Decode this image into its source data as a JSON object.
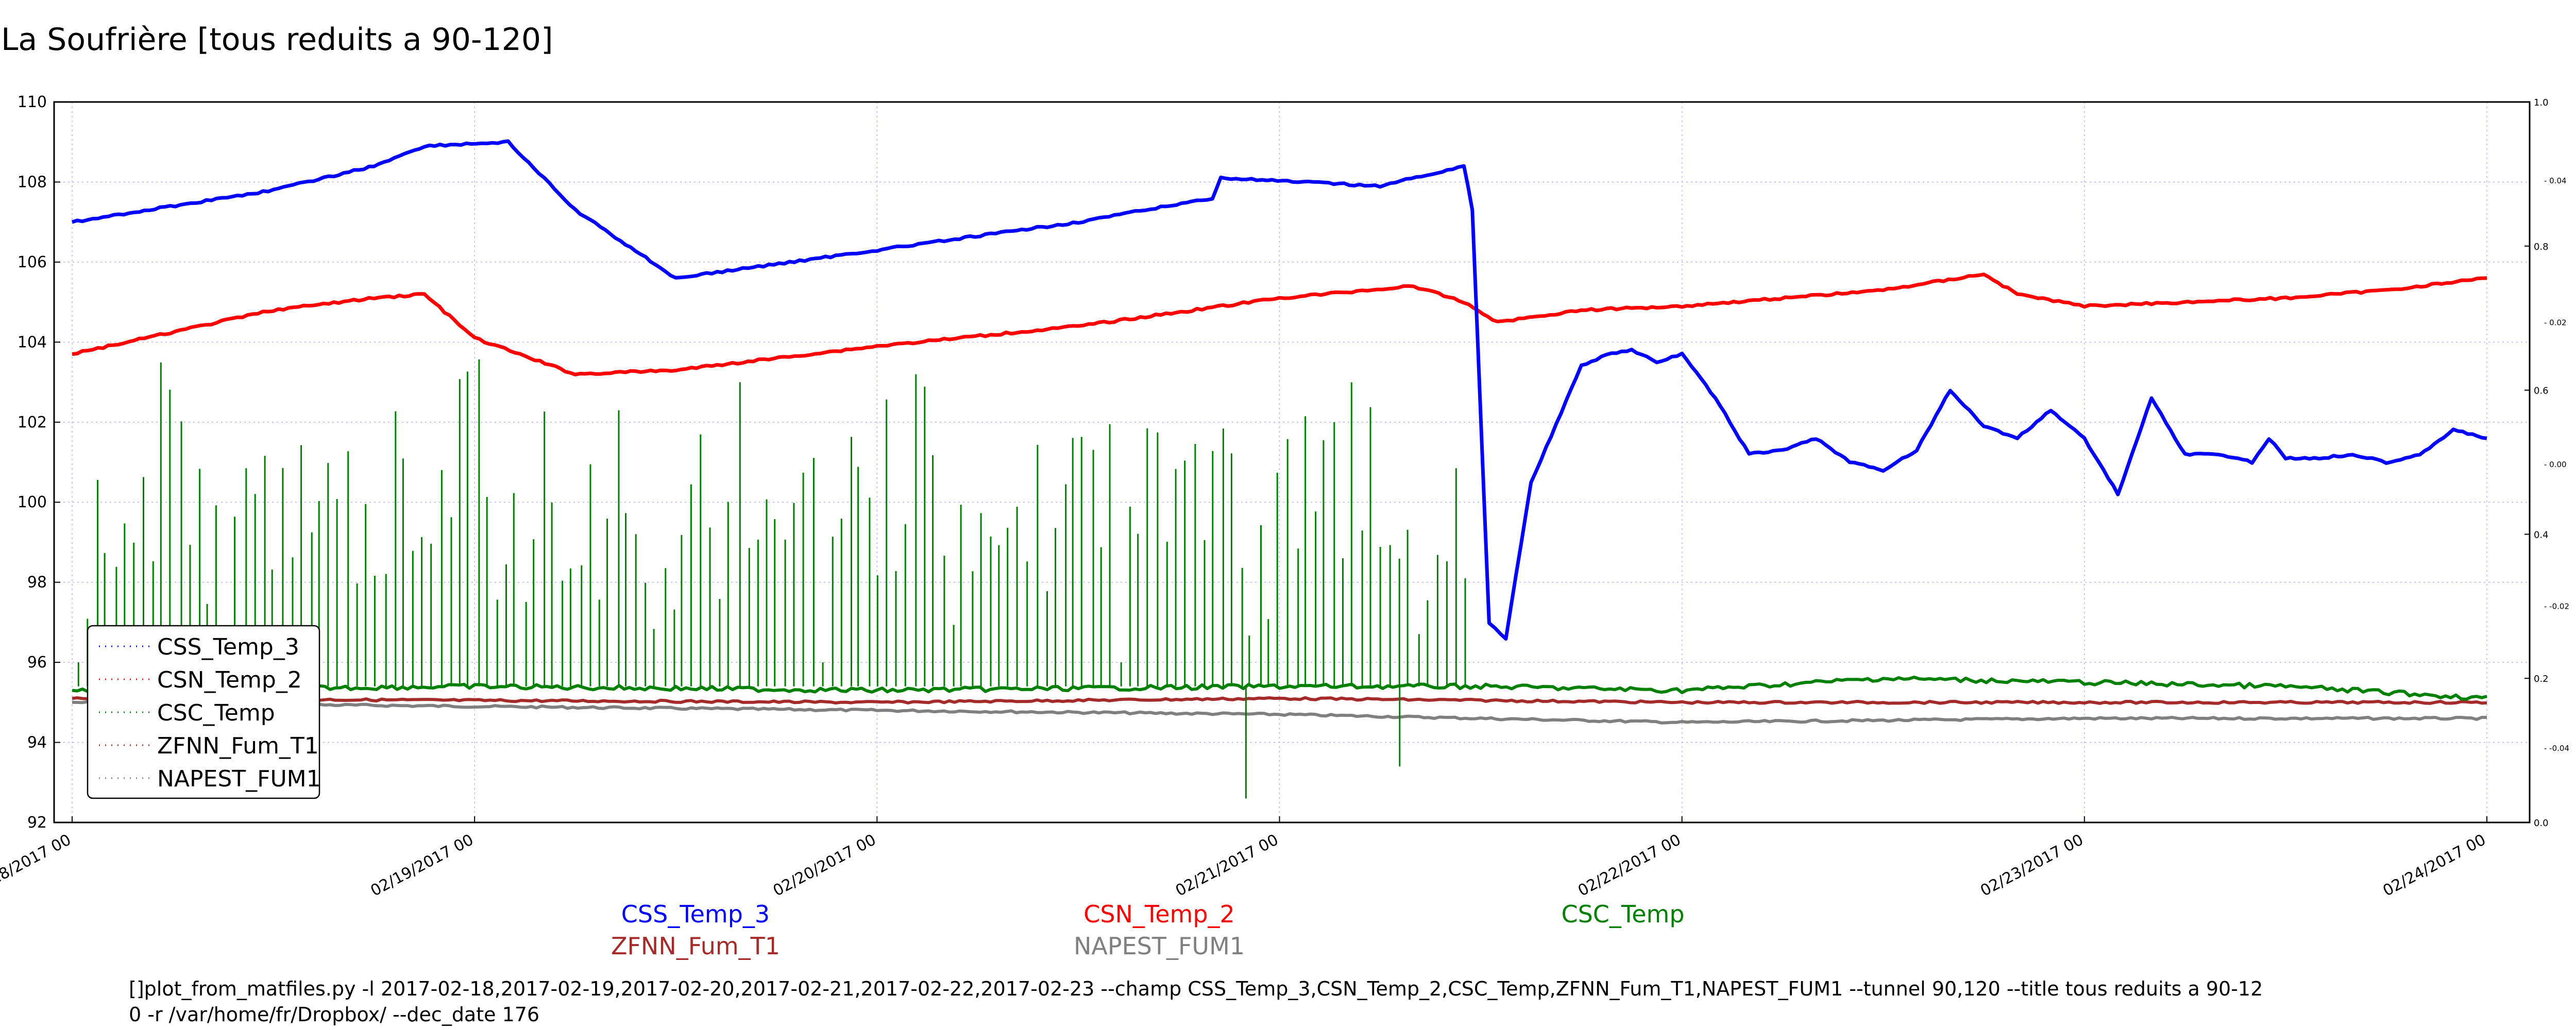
{
  "title": "La Soufrière [tous reduits a 90-120]",
  "command_lines": [
    "[]plot_from_matfiles.py -l 2017-02-18,2017-02-19,2017-02-20,2017-02-21,2017-02-22,2017-02-23 --champ CSS_Temp_3,CSN_Temp_2,CSC_Temp,ZFNN_Fum_T1,NAPEST_FUM1 --tunnel 90,120 --title tous reduits a 90-12",
    "0 -r /var/home/fr/Dropbox/ --dec_date 176"
  ],
  "series_labels": [
    {
      "text": "CSS_Temp_3",
      "color": "#0000ff"
    },
    {
      "text": "CSN_Temp_2",
      "color": "#ff0000"
    },
    {
      "text": "CSC_Temp",
      "color": "#008000"
    },
    {
      "text": "ZFNN_Fum_T1",
      "color": "#a52a2a"
    },
    {
      "text": "NAPEST_FUM1",
      "color": "#808080"
    }
  ],
  "chart_data": {
    "type": "line",
    "title": "La Soufrière [tous reduits a 90-120]",
    "xlabel": "",
    "ylabel": "",
    "x_ticks": [
      "02/18/2017 00",
      "02/19/2017 00",
      "02/20/2017 00",
      "02/21/2017 00",
      "02/22/2017 00",
      "02/23/2017 00",
      "02/24/2017 00"
    ],
    "xlim": [
      "2017-02-18T00:00",
      "2017-02-24T00:00"
    ],
    "ylim": [
      92,
      110
    ],
    "y_ticks": [
      92,
      94,
      96,
      98,
      100,
      102,
      104,
      106,
      108,
      110
    ],
    "y2_ticks": [
      "0.0",
      "0.2",
      "0.4",
      "0.6",
      "0.8",
      "1.0"
    ],
    "y2_inner_ticks": [
      "-0.04",
      "-0.02",
      "0.00",
      "0.02",
      "0.04"
    ],
    "grid": true,
    "legend_position": "lower-left",
    "series": [
      {
        "name": "CSS_Temp_3",
        "color": "#0000ff",
        "x": [
          "2017-02-18T00:00",
          "2017-02-18T12:00",
          "2017-02-18T18:00",
          "2017-02-18T21:00",
          "2017-02-19T02:00",
          "2017-02-19T06:00",
          "2017-02-19T12:00",
          "2017-02-20T00:00",
          "2017-02-20T12:00",
          "2017-02-20T20:00",
          "2017-02-20T20:30",
          "2017-02-21T06:00",
          "2017-02-21T10:00",
          "2017-02-21T11:00",
          "2017-02-21T11:30",
          "2017-02-21T12:30",
          "2017-02-21T13:30",
          "2017-02-21T15:00",
          "2017-02-21T18:00",
          "2017-02-21T19:30",
          "2017-02-21T21:00",
          "2017-02-21T22:30",
          "2017-02-22T00:00",
          "2017-02-22T02:00",
          "2017-02-22T04:00",
          "2017-02-22T06:00",
          "2017-02-22T08:00",
          "2017-02-22T10:00",
          "2017-02-22T12:00",
          "2017-02-22T14:00",
          "2017-02-22T16:00",
          "2017-02-22T18:00",
          "2017-02-22T20:00",
          "2017-02-22T22:00",
          "2017-02-23T00:00",
          "2017-02-23T02:00",
          "2017-02-23T04:00",
          "2017-02-23T06:00",
          "2017-02-23T08:00",
          "2017-02-23T10:00",
          "2017-02-23T11:00",
          "2017-02-23T12:00",
          "2017-02-23T14:00",
          "2017-02-23T16:00",
          "2017-02-23T18:00",
          "2017-02-23T20:00",
          "2017-02-23T22:00",
          "2017-02-24T00:00"
        ],
        "y": [
          107.0,
          107.8,
          108.4,
          108.9,
          109.0,
          107.3,
          105.6,
          106.3,
          107.0,
          107.6,
          108.1,
          107.9,
          108.3,
          108.4,
          107.3,
          97.0,
          96.6,
          100.5,
          103.4,
          103.7,
          103.8,
          103.5,
          103.7,
          102.6,
          101.2,
          101.3,
          101.6,
          101.0,
          100.8,
          101.3,
          102.8,
          101.9,
          101.6,
          102.3,
          101.6,
          100.2,
          102.6,
          101.2,
          101.2,
          101.0,
          101.6,
          101.1,
          101.1,
          101.2,
          101.0,
          101.2,
          101.8,
          101.6
        ]
      },
      {
        "name": "CSN_Temp_2",
        "color": "#ff0000",
        "x": [
          "2017-02-18T00:00",
          "2017-02-18T12:00",
          "2017-02-18T18:00",
          "2017-02-18T21:00",
          "2017-02-19T00:00",
          "2017-02-19T06:00",
          "2017-02-19T12:00",
          "2017-02-20T00:00",
          "2017-02-20T12:00",
          "2017-02-21T00:00",
          "2017-02-21T08:00",
          "2017-02-21T11:00",
          "2017-02-21T13:00",
          "2017-02-21T18:00",
          "2017-02-22T00:00",
          "2017-02-22T12:00",
          "2017-02-22T18:00",
          "2017-02-22T20:00",
          "2017-02-23T00:00",
          "2017-02-23T12:00",
          "2017-02-23T18:00",
          "2017-02-24T00:00"
        ],
        "y": [
          103.7,
          104.8,
          105.1,
          105.2,
          104.1,
          103.2,
          103.3,
          103.9,
          104.4,
          105.1,
          105.4,
          105.0,
          104.5,
          104.8,
          104.9,
          105.3,
          105.7,
          105.2,
          104.9,
          105.1,
          105.3,
          105.6
        ]
      },
      {
        "name": "CSC_Temp",
        "color": "#008000",
        "x": [
          "2017-02-18T00:00",
          "2017-02-19T00:00",
          "2017-02-20T00:00",
          "2017-02-21T00:00",
          "2017-02-21T12:00",
          "2017-02-22T00:00",
          "2017-02-22T12:00",
          "2017-02-23T00:00",
          "2017-02-23T12:00",
          "2017-02-24T00:00"
        ],
        "y": [
          95.3,
          95.4,
          95.3,
          95.4,
          95.4,
          95.3,
          95.6,
          95.5,
          95.4,
          95.1
        ],
        "spike_peaks": [
          98.5,
          101.0,
          102.4,
          102.0,
          102.3,
          101.8,
          102.4,
          103.0,
          101.8,
          103.5,
          103.6,
          103.7,
          102.5,
          101.5,
          101.0,
          102.0
        ]
      },
      {
        "name": "ZFNN_Fum_T1",
        "color": "#a52a2a",
        "x": [
          "2017-02-18T00:00",
          "2017-02-20T00:00",
          "2017-02-21T00:00",
          "2017-02-22T00:00",
          "2017-02-23T00:00",
          "2017-02-24T00:00"
        ],
        "y": [
          95.1,
          95.0,
          95.1,
          95.0,
          95.0,
          95.0
        ]
      },
      {
        "name": "NAPEST_FUM1",
        "color": "#808080",
        "x": [
          "2017-02-18T00:00",
          "2017-02-19T00:00",
          "2017-02-20T00:00",
          "2017-02-21T00:00",
          "2017-02-22T00:00",
          "2017-02-23T00:00",
          "2017-02-24T00:00"
        ],
        "y": [
          95.0,
          94.9,
          94.8,
          94.7,
          94.5,
          94.6,
          94.6
        ]
      }
    ]
  }
}
